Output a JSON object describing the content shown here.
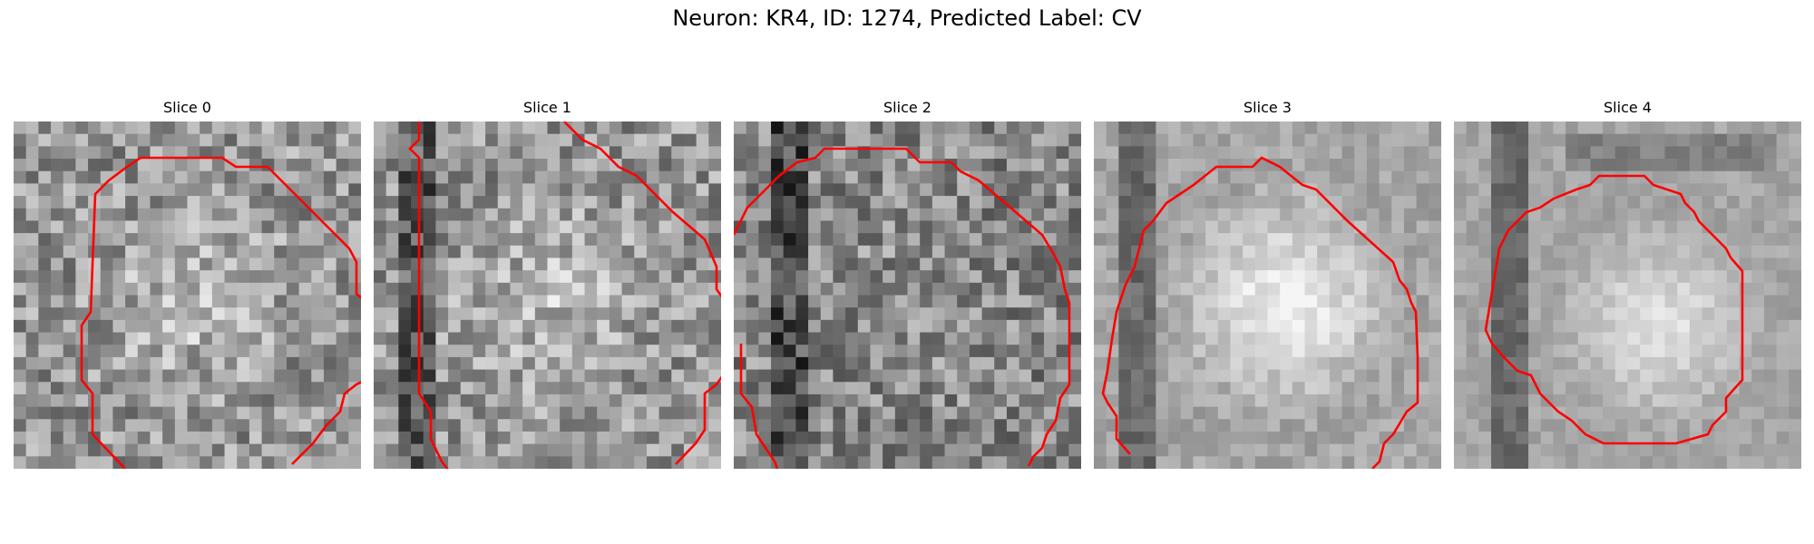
{
  "figure": {
    "title": "Neuron: KR4, ID: 1274, Predicted Label: CV",
    "contour_color": "#ff0000"
  },
  "panels": [
    {
      "title": "Slice 0"
    },
    {
      "title": "Slice 1"
    },
    {
      "title": "Slice 2"
    },
    {
      "title": "Slice 3"
    },
    {
      "title": "Slice 4"
    }
  ]
}
